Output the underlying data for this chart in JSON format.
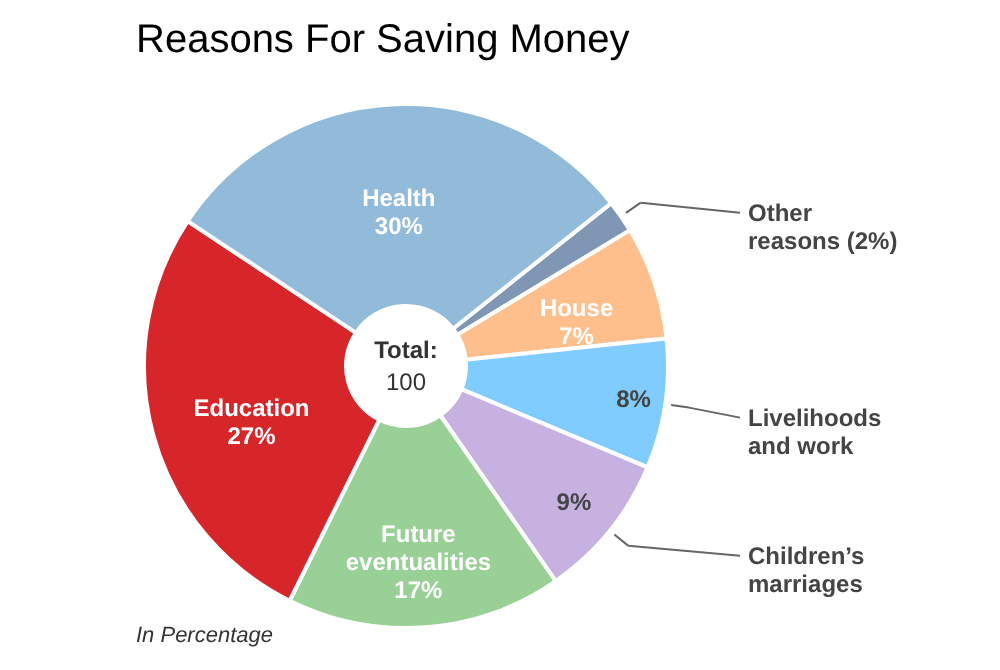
{
  "chart_data": {
    "type": "donut",
    "title": "Reasons For Saving Money",
    "categories": [
      "Other reasons (2%)",
      "House",
      "Livelihoods and work",
      "Children’s marriages",
      "Future eventualities",
      "Education",
      "Health"
    ],
    "values": [
      2,
      7,
      8,
      9,
      17,
      27,
      30
    ],
    "colors": [
      "#7f97b5",
      "#ffbf8c",
      "#80ccff",
      "#c6b1e0",
      "#98d096",
      "#d6262a",
      "#92bbda"
    ],
    "value_labels": [
      null,
      "7%",
      "8%",
      "9%",
      "17%",
      "27%",
      "30%"
    ],
    "annotations": [
      "Total:",
      "100",
      "In Percentage"
    ],
    "legend": false
  }
}
